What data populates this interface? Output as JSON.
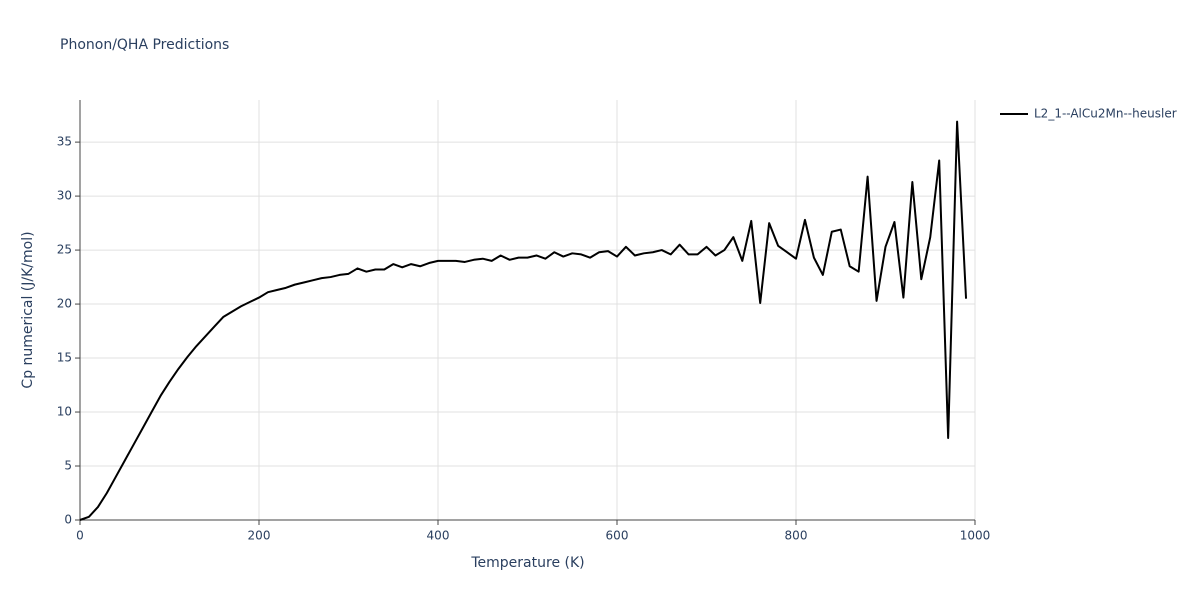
{
  "chart_data": {
    "type": "line",
    "title": "Phonon/QHA Predictions",
    "x_label": "Temperature (K)",
    "y_label": "Cp numerical (J/K/mol)",
    "x": [
      0,
      10,
      20,
      30,
      40,
      50,
      60,
      70,
      80,
      90,
      100,
      110,
      120,
      130,
      140,
      150,
      160,
      170,
      180,
      190,
      200,
      210,
      220,
      230,
      240,
      250,
      260,
      270,
      280,
      290,
      300,
      310,
      320,
      330,
      340,
      350,
      360,
      370,
      380,
      390,
      400,
      410,
      420,
      430,
      440,
      450,
      460,
      470,
      480,
      490,
      500,
      510,
      520,
      530,
      540,
      550,
      560,
      570,
      580,
      590,
      600,
      610,
      620,
      630,
      640,
      650,
      660,
      670,
      680,
      690,
      700,
      710,
      720,
      730,
      740,
      750,
      760,
      770,
      780,
      790,
      800,
      810,
      820,
      830,
      840,
      850,
      860,
      870,
      880,
      890,
      900,
      910,
      920,
      930,
      940,
      950,
      960,
      970,
      980,
      990
    ],
    "series": [
      {
        "name": "L2_1--AlCu2Mn--heusler",
        "color": "#000000",
        "values": [
          0,
          0.3,
          1.2,
          2.5,
          4.0,
          5.5,
          7.0,
          8.5,
          10.0,
          11.5,
          12.8,
          14.0,
          15.1,
          16.1,
          17.0,
          17.9,
          18.8,
          19.3,
          19.8,
          20.2,
          20.6,
          21.1,
          21.3,
          21.5,
          21.8,
          22.0,
          22.2,
          22.4,
          22.5,
          22.7,
          22.8,
          23.3,
          23.0,
          23.2,
          23.2,
          23.7,
          23.4,
          23.7,
          23.5,
          23.8,
          24.0,
          24.0,
          24.0,
          23.9,
          24.1,
          24.2,
          24.0,
          24.5,
          24.1,
          24.3,
          24.3,
          24.5,
          24.2,
          24.8,
          24.4,
          24.7,
          24.6,
          24.3,
          24.8,
          24.9,
          24.4,
          25.3,
          24.5,
          24.7,
          24.8,
          25.0,
          24.6,
          25.5,
          24.6,
          24.6,
          25.3,
          24.5,
          25.0,
          26.2,
          24.0,
          27.7,
          20.1,
          27.5,
          25.4,
          24.8,
          24.2,
          27.8,
          24.3,
          22.7,
          26.7,
          26.9,
          23.5,
          23.0,
          31.8,
          20.3,
          25.3,
          27.6,
          20.6,
          31.3,
          22.3,
          26.2,
          33.3,
          7.6,
          36.9,
          20.5
        ]
      }
    ],
    "xlim": [
      0,
      1000
    ],
    "xticks": [
      0,
      200,
      400,
      600,
      800,
      1000
    ],
    "ylim": [
      0,
      38.9
    ],
    "yticks": [
      0,
      5,
      10,
      15,
      20,
      25,
      30,
      35
    ],
    "grid": true,
    "legend": "right"
  }
}
